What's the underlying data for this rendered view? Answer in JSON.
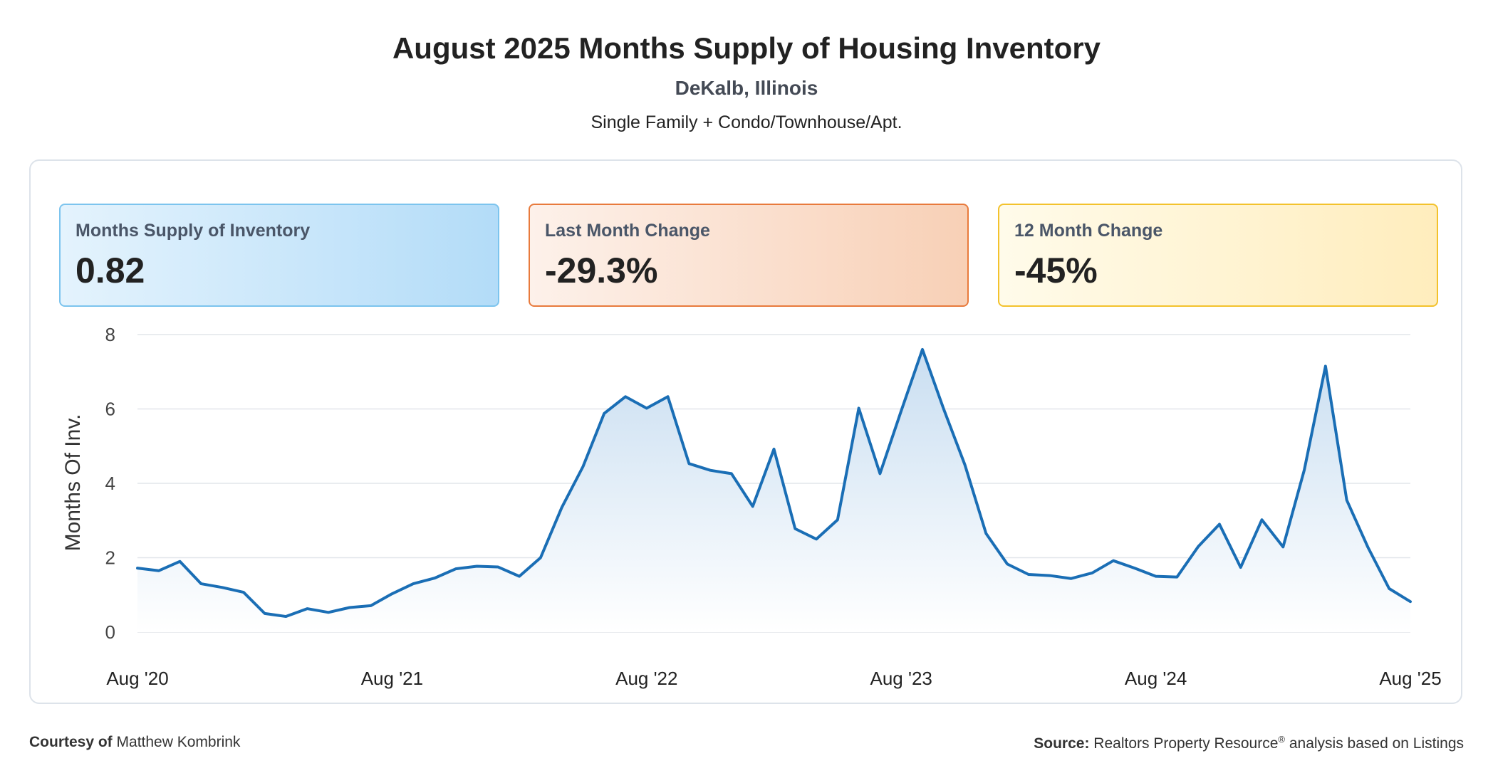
{
  "header": {
    "title": "August 2025 Months Supply of Housing Inventory",
    "location": "DeKalb, Illinois",
    "property_types": "Single Family + Condo/Townhouse/Apt."
  },
  "stats": {
    "supply": {
      "label": "Months Supply of Inventory",
      "value": "0.82"
    },
    "last_month": {
      "label": "Last Month Change",
      "value": "-29.3%"
    },
    "twelve_month": {
      "label": "12 Month Change",
      "value": "-45%"
    }
  },
  "colors": {
    "line": "#1a6eb5",
    "area_top": "#c9def1",
    "area_bottom": "#ffffff",
    "grid": "#e2e5ea",
    "tick_text": "#444444"
  },
  "chart_data": {
    "type": "area",
    "title": "August 2025 Months Supply of Housing Inventory",
    "xlabel": "",
    "ylabel": "Months Of Inv.",
    "ylim": [
      0,
      8
    ],
    "yticks": [
      "0",
      "2",
      "4",
      "6",
      "8"
    ],
    "grid": true,
    "legend": "none",
    "x_tick_labels": [
      "Aug '20",
      "Aug '21",
      "Aug '22",
      "Aug '23",
      "Aug '24",
      "Aug '25"
    ],
    "x_tick_months": [
      "2020-08",
      "2021-08",
      "2022-08",
      "2023-08",
      "2024-08",
      "2025-08"
    ],
    "x": [
      "2020-08",
      "2020-09",
      "2020-10",
      "2020-11",
      "2020-12",
      "2021-01",
      "2021-02",
      "2021-03",
      "2021-04",
      "2021-05",
      "2021-06",
      "2021-07",
      "2021-08",
      "2021-09",
      "2021-10",
      "2021-11",
      "2021-12",
      "2022-01",
      "2022-02",
      "2022-03",
      "2022-04",
      "2022-05",
      "2022-06",
      "2022-07",
      "2022-08",
      "2022-09",
      "2022-10",
      "2022-11",
      "2022-12",
      "2023-01",
      "2023-02",
      "2023-03",
      "2023-04",
      "2023-05",
      "2023-06",
      "2023-07",
      "2023-08",
      "2023-09",
      "2023-10",
      "2023-11",
      "2023-12",
      "2024-01",
      "2024-02",
      "2024-03",
      "2024-04",
      "2024-05",
      "2024-06",
      "2024-07",
      "2024-08",
      "2024-09",
      "2024-10",
      "2024-11",
      "2024-12",
      "2025-01",
      "2025-02",
      "2025-03",
      "2025-04",
      "2025-05",
      "2025-06",
      "2025-07",
      "2025-08"
    ],
    "series": [
      {
        "values": [
          1.72,
          1.65,
          1.9,
          1.3,
          1.2,
          1.07,
          0.5,
          0.42,
          0.63,
          0.53,
          0.66,
          0.71,
          1.03,
          1.3,
          1.45,
          1.7,
          1.77,
          1.75,
          1.5,
          2.0,
          3.35,
          4.45,
          5.88,
          6.33,
          6.02,
          6.33,
          4.53,
          4.35,
          4.26,
          3.38,
          4.92,
          2.78,
          2.5,
          3.02,
          6.02,
          4.26,
          5.95,
          7.6,
          6.0,
          4.5,
          2.65,
          1.83,
          1.55,
          1.52,
          1.44,
          1.59,
          1.92,
          1.72,
          1.5,
          1.48,
          2.3,
          2.9,
          1.74,
          3.02,
          2.29,
          4.36,
          7.15,
          3.55,
          2.28,
          1.17,
          0.82
        ]
      }
    ]
  },
  "footer": {
    "courtesy_label": "Courtesy of",
    "courtesy_name": "Matthew Kombrink",
    "source_label": "Source:",
    "source_text": "Realtors Property Resource",
    "source_reg": "®",
    "source_suffix": "analysis based on Listings"
  }
}
